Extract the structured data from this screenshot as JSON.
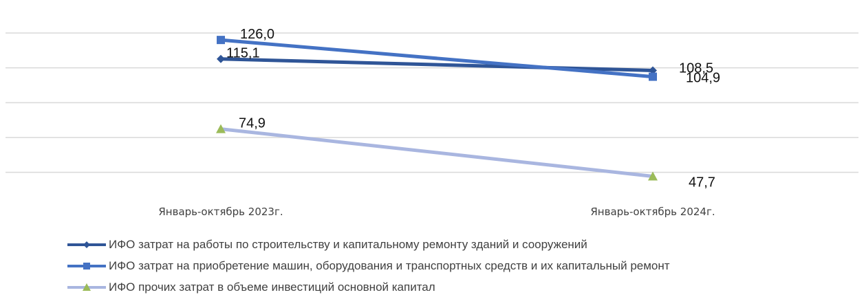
{
  "chart_data": {
    "type": "line",
    "categories": [
      "Январь-октябрь 2023г.",
      "Январь-октябрь 2024г."
    ],
    "series": [
      {
        "name": "ИФО затрат на работы по строительству и капитальному ремонту зданий и сооружений",
        "values": [
          115.1,
          108.5
        ],
        "labels": [
          "115,1",
          "108,5"
        ],
        "color": "#2F5597",
        "marker": "diamond"
      },
      {
        "name": "ИФО затрат на приобретение машин, оборудования и транспортных средств и их капитальный ремонт",
        "values": [
          126.0,
          104.9
        ],
        "labels": [
          "126,0",
          "104,9"
        ],
        "color": "#4472C4",
        "marker": "square"
      },
      {
        "name": "ИФО прочих затрат в объеме инвестиций основной капитал",
        "values": [
          74.9,
          47.7
        ],
        "labels": [
          "74,9",
          "47,7"
        ],
        "color": "#A9B6E0",
        "marker_color": "#9BBB59",
        "marker": "triangle"
      }
    ],
    "ylim": [
      40,
      130
    ],
    "gridlines": [
      50,
      70,
      90,
      110,
      130
    ],
    "grid": true,
    "legend_position": "bottom"
  }
}
